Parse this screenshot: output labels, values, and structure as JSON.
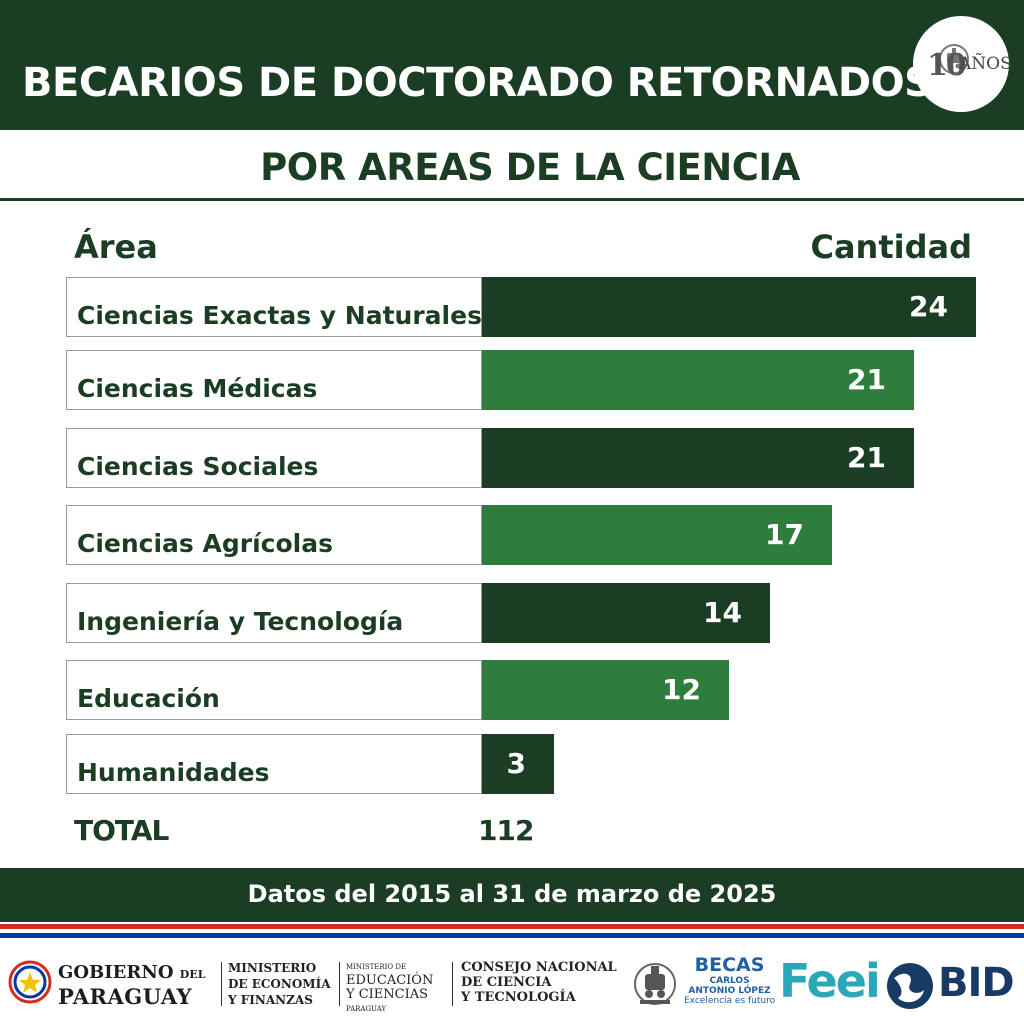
{
  "header": {
    "title": "BECARIOS DE DOCTORADO RETORNADOS",
    "badge_number": "10",
    "badge_text": "AÑOS",
    "subtitle": "POR AREAS DE LA CIENCIA"
  },
  "table": {
    "col_area": "Área",
    "col_quantity": "Cantidad",
    "total_label": "TOTAL",
    "total_value": "112"
  },
  "chart_data": {
    "type": "bar",
    "orientation": "horizontal",
    "categories": [
      "Ciencias Exactas y Naturales",
      "Ciencias Médicas",
      "Ciencias Sociales",
      "Ciencias Agrícolas",
      "Ingeniería y Tecnología",
      "Educación",
      "Humanidades"
    ],
    "values": [
      24,
      21,
      21,
      17,
      14,
      12,
      3
    ],
    "value_labels": [
      "24",
      "21",
      "21",
      "17",
      "14",
      "12",
      "3"
    ],
    "colors": [
      "#1b3d23",
      "#2e7d3d",
      "#1b3d23",
      "#2e7d3d",
      "#1b3d23",
      "#2e7d3d",
      "#1b3d23"
    ],
    "title": "",
    "xlabel": "",
    "ylabel": "",
    "grid": false,
    "legend": "none"
  },
  "footer": {
    "note": "Datos del 2015 al 31 de marzo de 2025",
    "flag_colors": [
      "#d52b1e",
      "#ffffff",
      "#0038a8"
    ]
  },
  "logos": {
    "gobierno_line1_a": "GOBIERNO",
    "gobierno_line1_b": "DEL",
    "gobierno_line2": "PARAGUAY",
    "mef": [
      "MINISTERIO",
      "DE ECONOMÍA",
      "Y FINANZAS"
    ],
    "mec_small": "MINISTERIO DE",
    "mec": [
      "EDUCACIÓN",
      "Y CIENCIAS"
    ],
    "mec_country": "PARAGUAY",
    "conacyt": [
      "CONSEJO NACIONAL",
      "DE CIENCIA",
      "Y TECNOLOGÍA"
    ],
    "becas_title": "BECAS",
    "becas_line2": "CARLOS",
    "becas_line3": "ANTONIO LÓPEZ",
    "becas_tagline": "Excelencia es futuro",
    "feei": "Feei",
    "bid": "BID",
    "icons": [
      "paraguay-seal-icon",
      "train-icon",
      "bid-globe-icon"
    ]
  }
}
